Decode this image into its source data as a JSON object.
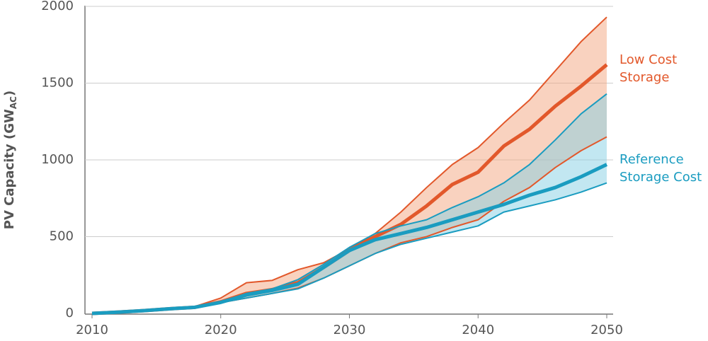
{
  "chart_data": {
    "type": "band-line",
    "ylabel": [
      "PV Capacity (GW",
      "AC",
      ")"
    ],
    "x": [
      2010,
      2012,
      2014,
      2016,
      2018,
      2020,
      2022,
      2024,
      2026,
      2028,
      2030,
      2032,
      2034,
      2036,
      2038,
      2040,
      2042,
      2044,
      2046,
      2048,
      2050
    ],
    "series": [
      {
        "name": [
          "Low Cost",
          "Storage"
        ],
        "color": "#e2582b",
        "band_color": "#f4a57f",
        "values": [
          0,
          8,
          18,
          30,
          40,
          75,
          130,
          155,
          200,
          300,
          410,
          500,
          580,
          700,
          840,
          920,
          1090,
          1200,
          1350,
          1480,
          1620
        ],
        "upper": [
          0,
          10,
          20,
          35,
          45,
          100,
          200,
          215,
          285,
          330,
          420,
          520,
          660,
          820,
          970,
          1080,
          1240,
          1390,
          1580,
          1770,
          1930
        ],
        "lower": [
          0,
          6,
          15,
          28,
          38,
          70,
          100,
          130,
          165,
          230,
          310,
          390,
          460,
          500,
          560,
          610,
          730,
          820,
          950,
          1060,
          1150
        ]
      },
      {
        "name": [
          "Reference",
          "Storage Cost"
        ],
        "color": "#1a9cc0",
        "band_color": "#86cfe4",
        "values": [
          0,
          8,
          18,
          30,
          40,
          72,
          120,
          150,
          190,
          300,
          410,
          480,
          520,
          560,
          610,
          660,
          710,
          770,
          820,
          890,
          970
        ],
        "upper": [
          0,
          8,
          18,
          30,
          42,
          75,
          130,
          160,
          220,
          320,
          430,
          520,
          570,
          610,
          690,
          760,
          850,
          970,
          1130,
          1300,
          1430
        ],
        "lower": [
          0,
          6,
          15,
          28,
          38,
          70,
          100,
          130,
          160,
          230,
          310,
          390,
          450,
          490,
          530,
          570,
          660,
          700,
          740,
          790,
          850
        ]
      }
    ],
    "xlim": [
      2010,
      2050
    ],
    "xticks": [
      2010,
      2020,
      2030,
      2040,
      2050
    ],
    "ylim": [
      0,
      2000
    ],
    "yticks": [
      0,
      500,
      1000,
      1500,
      2000
    ],
    "grid": true
  }
}
